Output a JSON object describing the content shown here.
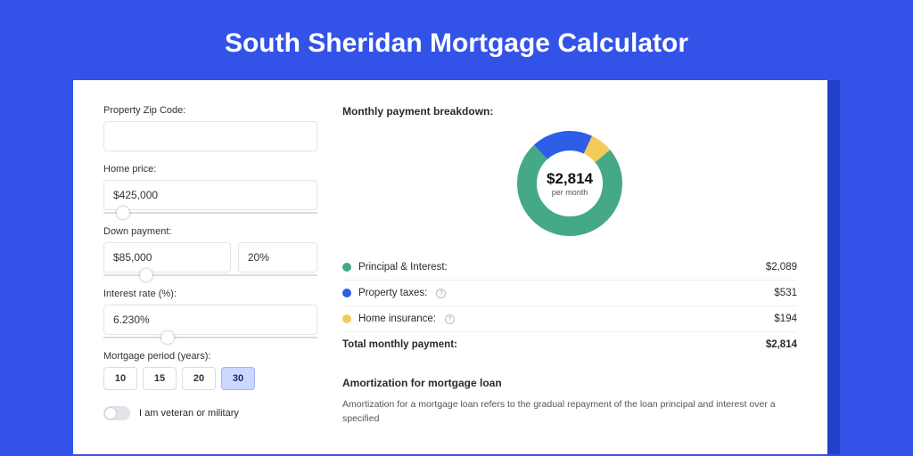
{
  "colors": {
    "page_bg": "#3353e8",
    "shadow_bg": "#2340c9",
    "card_bg": "#ffffff",
    "border": "#e2e4ea",
    "slider_track": "#d9dce6",
    "active_btn_bg": "#cdd8ff",
    "text": "#2a2a2a"
  },
  "title": "South Sheridan Mortgage Calculator",
  "form": {
    "zip_label": "Property Zip Code:",
    "zip_value": "",
    "home_price_label": "Home price:",
    "home_price_value": "$425,000",
    "home_price_slider_pct": 9,
    "down_payment_label": "Down payment:",
    "down_payment_value": "$85,000",
    "down_payment_pct_value": "20%",
    "down_payment_slider_pct": 20,
    "rate_label": "Interest rate (%):",
    "rate_value": "6.230%",
    "rate_slider_pct": 30,
    "period_label": "Mortgage period (years):",
    "periods": [
      "10",
      "15",
      "20",
      "30"
    ],
    "period_active_index": 3,
    "veteran_label": "I am veteran or military"
  },
  "breakdown": {
    "heading": "Monthly payment breakdown:",
    "center_amount": "$2,814",
    "center_sub": "per month",
    "donut": {
      "type": "donut",
      "radius": 48,
      "thickness": 22,
      "segments": [
        {
          "key": "principal_interest",
          "fraction": 0.742,
          "color": "#46a986"
        },
        {
          "key": "property_taxes",
          "fraction": 0.189,
          "color": "#2e5ee8"
        },
        {
          "key": "home_insurance",
          "fraction": 0.069,
          "color": "#f2cb5b"
        }
      ],
      "start_angle_deg": -40
    },
    "rows": [
      {
        "label": "Principal & Interest:",
        "value": "$2,089",
        "color": "#46a986",
        "info": false
      },
      {
        "label": "Property taxes:",
        "value": "$531",
        "color": "#2e5ee8",
        "info": true
      },
      {
        "label": "Home insurance:",
        "value": "$194",
        "color": "#f2cb5b",
        "info": true
      }
    ],
    "total_label": "Total monthly payment:",
    "total_value": "$2,814"
  },
  "amortization": {
    "heading": "Amortization for mortgage loan",
    "text": "Amortization for a mortgage loan refers to the gradual repayment of the loan principal and interest over a specified"
  }
}
